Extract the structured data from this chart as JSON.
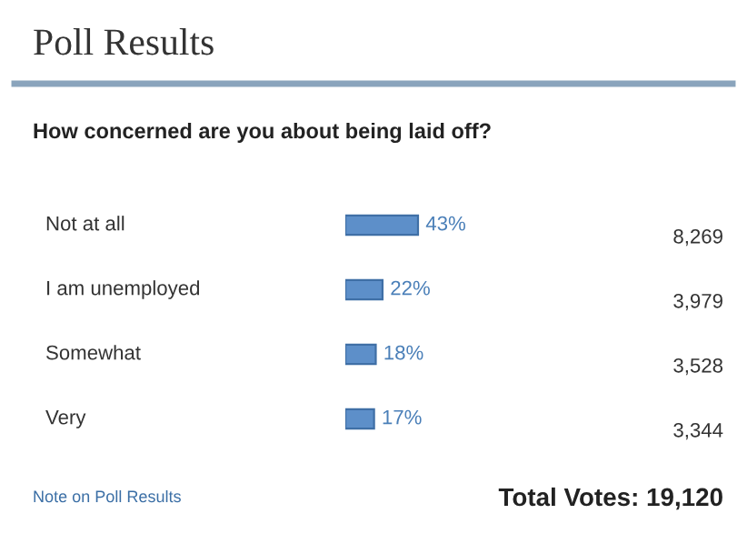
{
  "chart_data": {
    "type": "bar",
    "orientation": "horizontal",
    "title": "Poll Results",
    "subtitle": "How concerned are you about being laid off?",
    "categories": [
      "Not at all",
      "I am unemployed",
      "Somewhat",
      "Very"
    ],
    "values": [
      43,
      22,
      18,
      17
    ],
    "value_labels": [
      "43%",
      "22%",
      "18%",
      "17%"
    ],
    "color": "#5d8fc9",
    "annotations": [
      "8,269",
      "3,979",
      "3,528",
      "3,344",
      "Note on Poll Results",
      "Total Votes: 19,120"
    ]
  }
}
